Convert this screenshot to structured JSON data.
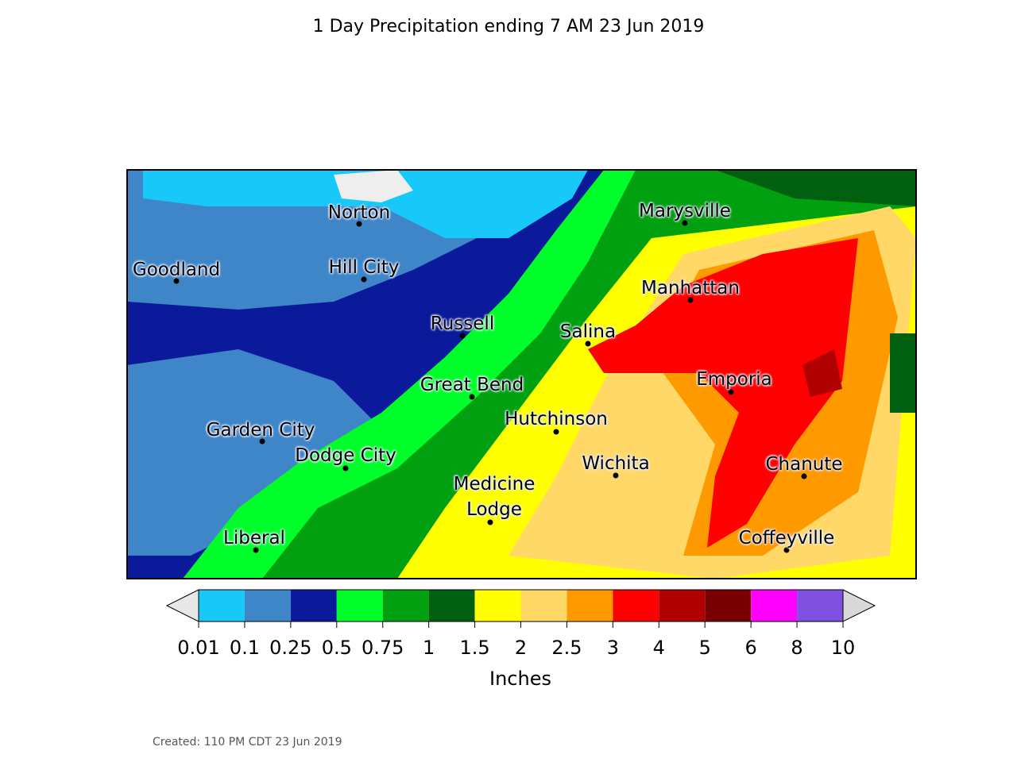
{
  "title": "1 Day Precipitation ending 7 AM 23 Jun 2019",
  "cities": [
    {
      "label": "Norton"
    },
    {
      "label": "Goodland"
    },
    {
      "label": "Hill City"
    },
    {
      "label": "Russell"
    },
    {
      "label": "Great Bend"
    },
    {
      "label": "Garden City"
    },
    {
      "label": "Dodge City"
    },
    {
      "label": "Medicine Lodge"
    },
    {
      "label": "Liberal"
    },
    {
      "label": "Marysville"
    },
    {
      "label": "Manhattan"
    },
    {
      "label": "Salina"
    },
    {
      "label": "Emporia"
    },
    {
      "label": "Hutchinson"
    },
    {
      "label": "Wichita"
    },
    {
      "label": "Chanute"
    },
    {
      "label": "Coffeyville"
    }
  ],
  "colorbar": {
    "bounds": [
      0.01,
      0.1,
      0.25,
      0.5,
      0.75,
      1,
      1.5,
      2,
      2.5,
      3,
      4,
      5,
      6,
      8,
      10
    ],
    "colors": [
      "#18c8f8",
      "#3f86c8",
      "#0a1a9a",
      "#00ff2a",
      "#00a010",
      "#006010",
      "#ffff00",
      "#ffd868",
      "#ff9900",
      "#ff0000",
      "#b00000",
      "#780000",
      "#ff00ff",
      "#8050e0"
    ],
    "label": "Inches"
  },
  "footer": "Created: 110 PM CDT 23 Jun 2019"
}
